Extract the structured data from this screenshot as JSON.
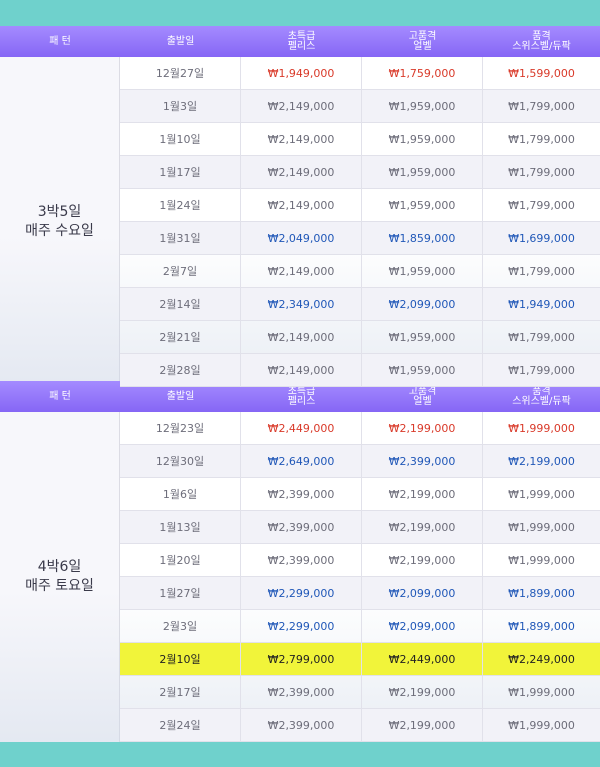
{
  "headers": {
    "pattern": "패 턴",
    "date": "출발일",
    "col1": [
      "초특급",
      "펠리스"
    ],
    "col2": [
      "고품격",
      "얼벨"
    ],
    "col3": [
      "품격",
      "스위스벨/듀팍"
    ]
  },
  "sections": [
    {
      "pattern": [
        "3박5일",
        "매주 수요일"
      ],
      "rows": [
        {
          "date": "12월27일",
          "p1": "₩1,949,000",
          "p2": "₩1,759,000",
          "p3": "₩1,599,000",
          "style": "red"
        },
        {
          "date": "1월3일",
          "p1": "₩2,149,000",
          "p2": "₩1,959,000",
          "p3": "₩1,799,000",
          "style": ""
        },
        {
          "date": "1월10일",
          "p1": "₩2,149,000",
          "p2": "₩1,959,000",
          "p3": "₩1,799,000",
          "style": ""
        },
        {
          "date": "1월17일",
          "p1": "₩2,149,000",
          "p2": "₩1,959,000",
          "p3": "₩1,799,000",
          "style": ""
        },
        {
          "date": "1월24일",
          "p1": "₩2,149,000",
          "p2": "₩1,959,000",
          "p3": "₩1,799,000",
          "style": ""
        },
        {
          "date": "1월31일",
          "p1": "₩2,049,000",
          "p2": "₩1,859,000",
          "p3": "₩1,699,000",
          "style": "blue"
        },
        {
          "date": "2월7일",
          "p1": "₩2,149,000",
          "p2": "₩1,959,000",
          "p3": "₩1,799,000",
          "style": ""
        },
        {
          "date": "2월14일",
          "p1": "₩2,349,000",
          "p2": "₩2,099,000",
          "p3": "₩1,949,000",
          "style": "blue"
        },
        {
          "date": "2월21일",
          "p1": "₩2,149,000",
          "p2": "₩1,959,000",
          "p3": "₩1,799,000",
          "style": ""
        },
        {
          "date": "2월28일",
          "p1": "₩2,149,000",
          "p2": "₩1,959,000",
          "p3": "₩1,799,000",
          "style": ""
        }
      ]
    },
    {
      "pattern": [
        "4박6일",
        "매주 토요일"
      ],
      "rows": [
        {
          "date": "12월23일",
          "p1": "₩2,449,000",
          "p2": "₩2,199,000",
          "p3": "₩1,999,000",
          "style": "red"
        },
        {
          "date": "12월30일",
          "p1": "₩2,649,000",
          "p2": "₩2,399,000",
          "p3": "₩2,199,000",
          "style": "blue"
        },
        {
          "date": "1월6일",
          "p1": "₩2,399,000",
          "p2": "₩2,199,000",
          "p3": "₩1,999,000",
          "style": ""
        },
        {
          "date": "1월13일",
          "p1": "₩2,399,000",
          "p2": "₩2,199,000",
          "p3": "₩1,999,000",
          "style": ""
        },
        {
          "date": "1월20일",
          "p1": "₩2,399,000",
          "p2": "₩2,199,000",
          "p3": "₩1,999,000",
          "style": ""
        },
        {
          "date": "1월27일",
          "p1": "₩2,299,000",
          "p2": "₩2,099,000",
          "p3": "₩1,899,000",
          "style": "blue"
        },
        {
          "date": "2월3일",
          "p1": "₩2,299,000",
          "p2": "₩2,099,000",
          "p3": "₩1,899,000",
          "style": "blue"
        },
        {
          "date": "2월10일",
          "p1": "₩2,799,000",
          "p2": "₩2,449,000",
          "p3": "₩2,249,000",
          "style": "hl"
        },
        {
          "date": "2월17일",
          "p1": "₩2,399,000",
          "p2": "₩2,199,000",
          "p3": "₩1,999,000",
          "style": ""
        },
        {
          "date": "2월24일",
          "p1": "₩2,399,000",
          "p2": "₩2,199,000",
          "p3": "₩1,999,000",
          "style": ""
        }
      ]
    }
  ]
}
